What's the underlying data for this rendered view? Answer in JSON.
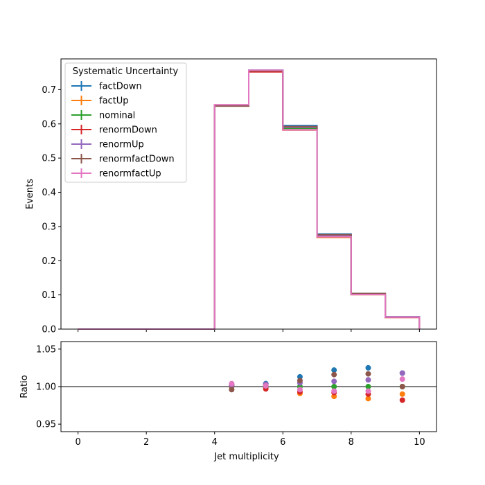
{
  "chart_data": [
    {
      "type": "line",
      "title": "",
      "xlabel": "",
      "ylabel": "Events",
      "xlim": [
        -0.5,
        10.5
      ],
      "ylim": [
        0,
        0.79
      ],
      "yticks": [
        "0.0",
        "0.1",
        "0.2",
        "0.3",
        "0.4",
        "0.5",
        "0.6",
        "0.7"
      ],
      "bin_edges": [
        0,
        1,
        2,
        3,
        4,
        5,
        6,
        7,
        8,
        9,
        10
      ],
      "legend": {
        "title": "Systematic Uncertainty",
        "placement": "upper-left"
      },
      "series": [
        {
          "name": "factDown",
          "color": "#1f77b4",
          "values": [
            0,
            0,
            0,
            0,
            0.655,
            0.757,
            0.595,
            0.278,
            0.104,
            0.036
          ]
        },
        {
          "name": "factUp",
          "color": "#ff7f0e",
          "values": [
            0,
            0,
            0,
            0,
            0.655,
            0.755,
            0.583,
            0.268,
            0.101,
            0.035
          ]
        },
        {
          "name": "nominal",
          "color": "#2ca02c",
          "values": [
            0,
            0,
            0,
            0,
            0.654,
            0.754,
            0.587,
            0.272,
            0.102,
            0.035
          ]
        },
        {
          "name": "renormDown",
          "color": "#d62728",
          "values": [
            0,
            0,
            0,
            0,
            0.655,
            0.752,
            0.582,
            0.27,
            0.101,
            0.034
          ]
        },
        {
          "name": "renormUp",
          "color": "#9467bd",
          "values": [
            0,
            0,
            0,
            0,
            0.655,
            0.756,
            0.59,
            0.274,
            0.103,
            0.036
          ]
        },
        {
          "name": "renormfactDown",
          "color": "#8c564b",
          "values": [
            0,
            0,
            0,
            0,
            0.652,
            0.755,
            0.592,
            0.276,
            0.104,
            0.035
          ]
        },
        {
          "name": "renormfactUp",
          "color": "#e377c2",
          "values": [
            0,
            0,
            0,
            0,
            0.656,
            0.757,
            0.583,
            0.27,
            0.101,
            0.035
          ]
        }
      ]
    },
    {
      "type": "scatter",
      "title": "",
      "xlabel": "Jet multiplicity",
      "ylabel": "Ratio",
      "xlim": [
        -0.5,
        10.5
      ],
      "ylim": [
        0.94,
        1.06
      ],
      "xticks": [
        "0",
        "2",
        "4",
        "6",
        "8",
        "10"
      ],
      "yticks": [
        "0.95",
        "1.00",
        "1.05"
      ],
      "reference_line": 1.0,
      "x": [
        4.5,
        5.5,
        6.5,
        7.5,
        8.5,
        9.5
      ],
      "series": [
        {
          "name": "factDown",
          "color": "#1f77b4",
          "values": [
            1.002,
            1.004,
            1.013,
            1.022,
            1.025,
            1.018
          ]
        },
        {
          "name": "factUp",
          "color": "#ff7f0e",
          "values": [
            1.001,
            0.999,
            0.991,
            0.987,
            0.984,
            0.99
          ]
        },
        {
          "name": "nominal",
          "color": "#2ca02c",
          "values": [
            1.0,
            1.0,
            1.0,
            1.0,
            1.0,
            1.0
          ]
        },
        {
          "name": "renormDown",
          "color": "#d62728",
          "values": [
            1.001,
            0.997,
            0.993,
            0.992,
            0.99,
            0.982
          ]
        },
        {
          "name": "renormUp",
          "color": "#9467bd",
          "values": [
            1.002,
            1.003,
            1.005,
            1.007,
            1.009,
            1.018
          ]
        },
        {
          "name": "renormfactDown",
          "color": "#8c564b",
          "values": [
            0.996,
            1.001,
            1.008,
            1.016,
            1.017,
            1.0
          ]
        },
        {
          "name": "renormfactUp",
          "color": "#e377c2",
          "values": [
            1.004,
            1.001,
            0.996,
            0.994,
            0.994,
            1.01
          ]
        }
      ]
    }
  ]
}
